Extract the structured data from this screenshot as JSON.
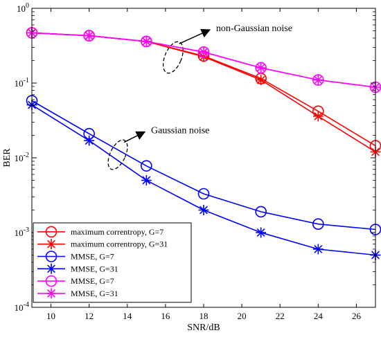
{
  "chart_data": {
    "type": "line",
    "xlabel": "SNR/dB",
    "ylabel": "BER",
    "xlim": [
      9,
      27
    ],
    "ylim": [
      0.0001,
      1
    ],
    "yscale": "log",
    "grid": false,
    "legend_position": "bottom-left",
    "x_ticks": [
      10,
      12,
      14,
      16,
      18,
      20,
      22,
      24,
      26
    ],
    "x_tick_labels": [
      "10",
      "12",
      "14",
      "16",
      "18",
      "20",
      "22",
      "24",
      "26"
    ],
    "y_ticks": [
      {
        "value": 1,
        "base": "10",
        "exp": "0"
      },
      {
        "value": 0.1,
        "base": "10",
        "exp": "-1"
      },
      {
        "value": 0.01,
        "base": "10",
        "exp": "-2"
      },
      {
        "value": 0.001,
        "base": "10",
        "exp": "-3"
      },
      {
        "value": 0.0001,
        "base": "10",
        "exp": "-4"
      }
    ],
    "x": [
      9,
      12,
      15,
      18,
      21,
      24,
      27
    ],
    "series": [
      {
        "name": "maximum correntropy, G=7",
        "color": "#ff0000",
        "marker": "circle",
        "values": [
          0.47,
          0.43,
          0.36,
          0.23,
          0.115,
          0.042,
          0.0145
        ]
      },
      {
        "name": "maximum correntropy, G=31",
        "color": "#ff0000",
        "marker": "star",
        "values": [
          0.47,
          0.43,
          0.36,
          0.225,
          0.11,
          0.036,
          0.012
        ]
      },
      {
        "name": "MMSE, G=7",
        "color": "#0000ff",
        "marker": "circle",
        "values": [
          0.058,
          0.021,
          0.0078,
          0.0033,
          0.0019,
          0.0013,
          0.0011
        ]
      },
      {
        "name": "MMSE, G=31",
        "color": "#0000ff",
        "marker": "star",
        "values": [
          0.051,
          0.017,
          0.005,
          0.002,
          0.001,
          0.0006,
          0.0005
        ]
      },
      {
        "name": "MMSE, G=7",
        "color": "#ff00ff",
        "marker": "circle",
        "values": [
          0.47,
          0.43,
          0.36,
          0.26,
          0.16,
          0.11,
          0.088
        ]
      },
      {
        "name": "MMSE, G=31",
        "color": "#ff00ff",
        "marker": "star",
        "values": [
          0.47,
          0.43,
          0.36,
          0.26,
          0.16,
          0.11,
          0.088
        ]
      }
    ],
    "annotations": [
      {
        "text": "non-Gaussian noise",
        "ellipse_at": {
          "x": 16.4,
          "y": 0.22
        },
        "arrow_to_text": true
      },
      {
        "text": "Gaussian noise",
        "ellipse_at": {
          "x": 13.5,
          "y": 0.011
        },
        "arrow_to_text": true
      }
    ]
  }
}
